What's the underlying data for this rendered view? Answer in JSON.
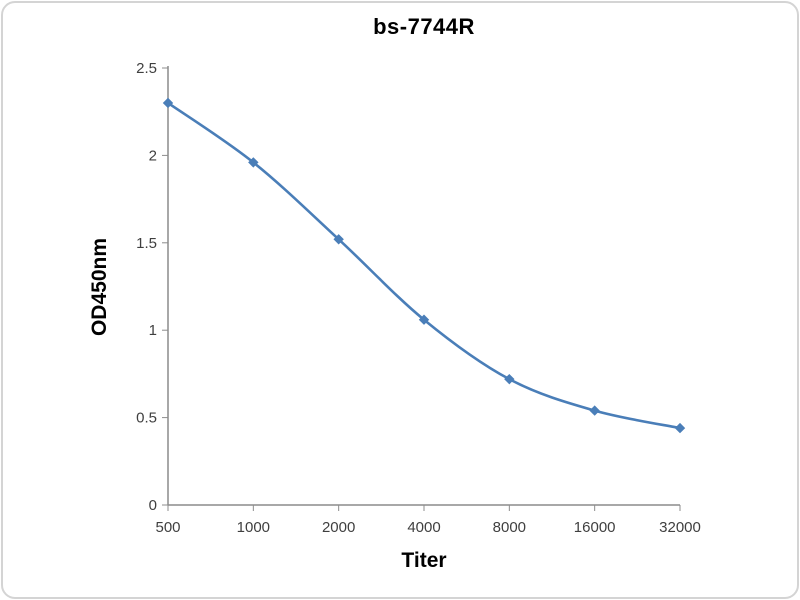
{
  "chart_data": {
    "type": "line",
    "title": "bs-7744R",
    "xlabel": "Titer",
    "ylabel": "OD450nm",
    "categories": [
      "500",
      "1000",
      "2000",
      "4000",
      "8000",
      "16000",
      "32000"
    ],
    "series": [
      {
        "name": "bs-7744R",
        "values": [
          2.3,
          1.96,
          1.52,
          1.06,
          0.72,
          0.54,
          0.44
        ]
      }
    ],
    "ylim": [
      0,
      2.5
    ],
    "y_ticks": [
      0,
      0.5,
      1,
      1.5,
      2,
      2.5
    ],
    "y_tick_labels": [
      "0",
      "0.5",
      "1",
      "1.5",
      "2",
      "2.5"
    ],
    "grid": false,
    "legend": "none",
    "marker": "diamond",
    "line_color": "#4a7eb8",
    "axis_color": "#8c8c8c",
    "text_color": "#3f3f3f",
    "title_color": "#000000"
  }
}
